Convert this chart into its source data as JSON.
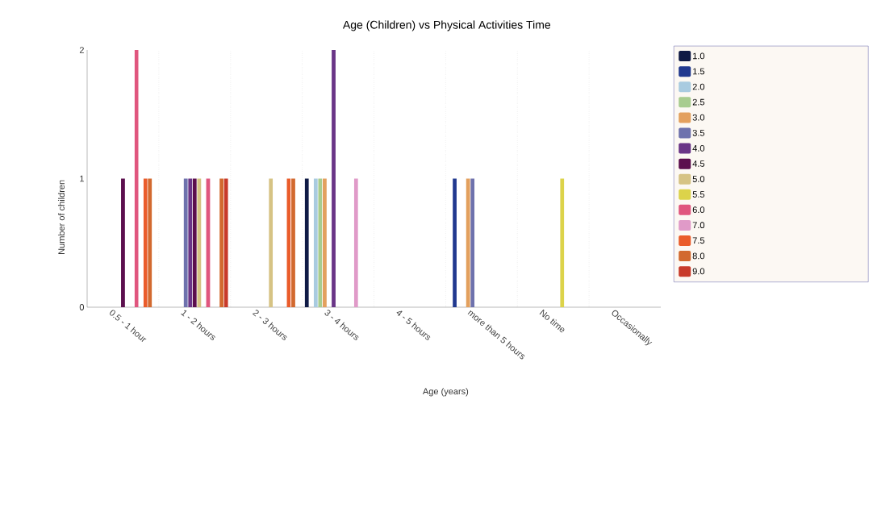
{
  "chart_data": {
    "type": "bar",
    "title": "Age (Children) vs Physical Activities Time",
    "xlabel": "Age (years)",
    "ylabel": "Number of children",
    "categories": [
      "0.5 - 1 hour",
      "1 - 2 hours",
      "2 - 3 hours",
      "3 - 4 hours",
      "4 - 5 hours",
      "more than 5 hours",
      "No time",
      "Occasionally"
    ],
    "ylim": [
      0,
      2
    ],
    "yticks": [
      0,
      1,
      2
    ],
    "grid": "x",
    "legend": "right",
    "series": [
      {
        "name": "1.0",
        "color": "#0f1a45",
        "values": [
          null,
          null,
          null,
          1,
          null,
          null,
          null,
          null
        ]
      },
      {
        "name": "1.5",
        "color": "#21398f",
        "values": [
          null,
          null,
          null,
          null,
          null,
          1,
          null,
          null
        ]
      },
      {
        "name": "2.0",
        "color": "#a9cbe0",
        "values": [
          null,
          null,
          null,
          1,
          null,
          null,
          null,
          null
        ]
      },
      {
        "name": "2.5",
        "color": "#a8cc8f",
        "values": [
          null,
          null,
          null,
          1,
          null,
          null,
          null,
          null
        ]
      },
      {
        "name": "3.0",
        "color": "#e3a05e",
        "values": [
          null,
          null,
          null,
          1,
          null,
          1,
          null,
          null
        ]
      },
      {
        "name": "3.5",
        "color": "#6e72ad",
        "values": [
          null,
          1,
          null,
          null,
          null,
          1,
          null,
          null
        ]
      },
      {
        "name": "4.0",
        "color": "#6a3587",
        "values": [
          null,
          1,
          null,
          2,
          null,
          null,
          null,
          null
        ]
      },
      {
        "name": "4.5",
        "color": "#5c0f4e",
        "values": [
          1,
          1,
          null,
          null,
          null,
          null,
          null,
          null
        ]
      },
      {
        "name": "5.0",
        "color": "#d6c384",
        "values": [
          null,
          1,
          1,
          null,
          null,
          null,
          null,
          null
        ]
      },
      {
        "name": "5.5",
        "color": "#dcd34a",
        "values": [
          null,
          null,
          null,
          null,
          null,
          null,
          1,
          null
        ]
      },
      {
        "name": "6.0",
        "color": "#e0567e",
        "values": [
          2,
          1,
          null,
          null,
          null,
          null,
          null,
          null
        ]
      },
      {
        "name": "7.0",
        "color": "#e09ac8",
        "values": [
          null,
          null,
          null,
          1,
          null,
          null,
          null,
          null
        ]
      },
      {
        "name": "7.5",
        "color": "#ea5c2b",
        "values": [
          1,
          null,
          1,
          null,
          null,
          null,
          null,
          null
        ]
      },
      {
        "name": "8.0",
        "color": "#d2692f",
        "values": [
          1,
          1,
          1,
          null,
          null,
          null,
          null,
          null
        ]
      },
      {
        "name": "9.0",
        "color": "#c83a2a",
        "values": [
          null,
          1,
          null,
          null,
          null,
          null,
          null,
          null
        ]
      }
    ]
  }
}
